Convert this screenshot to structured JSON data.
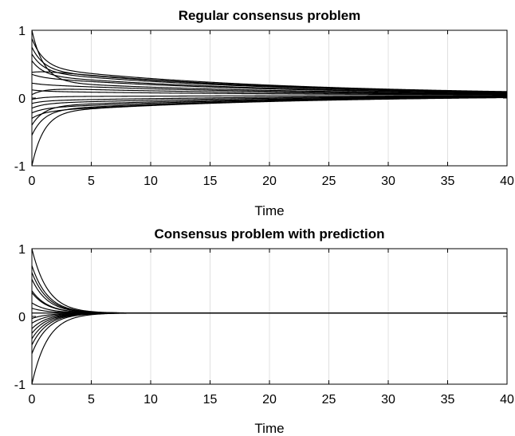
{
  "chart_data": [
    {
      "type": "line",
      "title": "Regular consensus problem",
      "xlabel": "Time",
      "ylabel": "",
      "xlim": [
        0,
        40
      ],
      "ylim": [
        -1,
        1
      ],
      "xticks": [
        "0",
        "5",
        "10",
        "15",
        "20",
        "25",
        "30",
        "35",
        "40"
      ],
      "yticks": [
        "-1",
        "0",
        "1"
      ],
      "grid": "vertical",
      "consensus_value": 0.04,
      "slow_decay_rate": 0.05,
      "fast_decay_rate": 1.0,
      "series": [
        {
          "initial": 1.0,
          "plateau": 0.24
        },
        {
          "initial": 0.88,
          "plateau": 0.45
        },
        {
          "initial": 0.75,
          "plateau": 0.41
        },
        {
          "initial": 0.65,
          "plateau": 0.38
        },
        {
          "initial": 0.55,
          "plateau": 0.33
        },
        {
          "initial": 0.38,
          "plateau": 0.42
        },
        {
          "initial": 0.35,
          "plateau": 0.3
        },
        {
          "initial": 0.22,
          "plateau": 0.2
        },
        {
          "initial": 0.12,
          "plateau": 0.1
        },
        {
          "initial": 0.05,
          "plateau": 0.15
        },
        {
          "initial": -0.02,
          "plateau": 0.02
        },
        {
          "initial": -0.08,
          "plateau": -0.04
        },
        {
          "initial": -0.15,
          "plateau": -0.08
        },
        {
          "initial": -0.22,
          "plateau": -0.15
        },
        {
          "initial": -0.3,
          "plateau": -0.2
        },
        {
          "initial": -0.4,
          "plateau": -0.12
        },
        {
          "initial": -0.55,
          "plateau": -0.18
        },
        {
          "initial": -1.0,
          "plateau": -0.21
        }
      ]
    },
    {
      "type": "line",
      "title": "Consensus problem with prediction",
      "xlabel": "Time",
      "ylabel": "",
      "xlim": [
        0,
        40
      ],
      "ylim": [
        -1,
        1
      ],
      "xticks": [
        "0",
        "5",
        "10",
        "15",
        "20",
        "25",
        "30",
        "35",
        "40"
      ],
      "yticks": [
        "-1",
        "0",
        "1"
      ],
      "grid": "vertical",
      "consensus_value": 0.05,
      "decay_rate": 0.75,
      "series": [
        {
          "initial": 1.0
        },
        {
          "initial": 0.75
        },
        {
          "initial": 0.65
        },
        {
          "initial": 0.55
        },
        {
          "initial": 0.38
        },
        {
          "initial": 0.35
        },
        {
          "initial": 0.2
        },
        {
          "initial": 0.12
        },
        {
          "initial": 0.05
        },
        {
          "initial": -0.03
        },
        {
          "initial": -0.1
        },
        {
          "initial": -0.18
        },
        {
          "initial": -0.25
        },
        {
          "initial": -0.33
        },
        {
          "initial": -0.42
        },
        {
          "initial": -0.55
        },
        {
          "initial": -1.0
        }
      ]
    }
  ]
}
